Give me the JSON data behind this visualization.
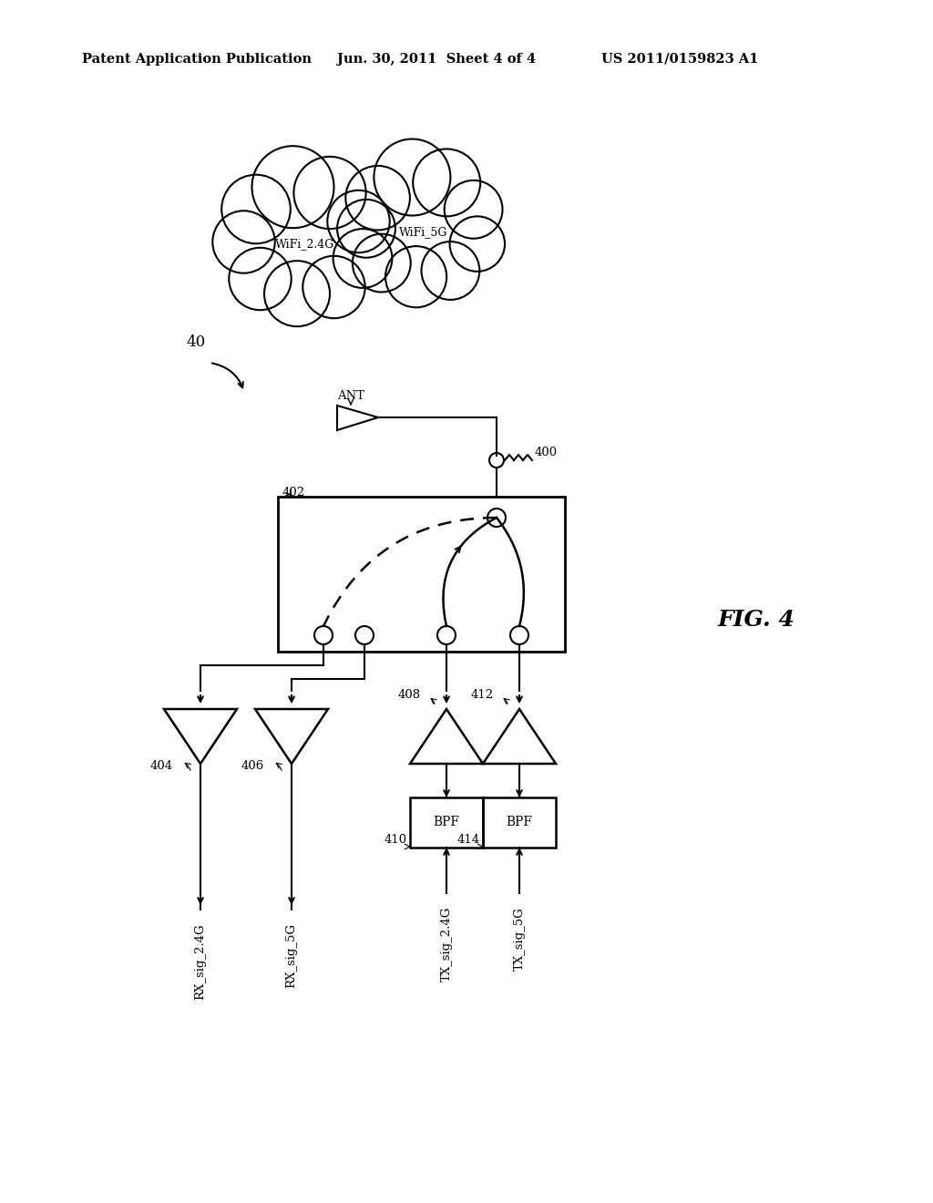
{
  "title_left": "Patent Application Publication",
  "title_mid": "Jun. 30, 2011  Sheet 4 of 4",
  "title_right": "US 2011/0159823 A1",
  "fig_label": "FIG. 4",
  "label_40": "40",
  "label_ANT": "ANT",
  "label_400": "400",
  "label_402": "402",
  "label_404": "404",
  "label_406": "406",
  "label_408": "408",
  "label_410": "410",
  "label_412": "412",
  "label_414": "414",
  "label_wifi24": "WiFi_2.4G",
  "label_wifi5": "WiFi_5G",
  "label_rx24": "RX_sig_2.4G",
  "label_rx5": "RX_sig_5G",
  "label_tx24": "TX_sig_2.4G",
  "label_tx5": "TX_sig_5G",
  "label_bpf1": "BPF",
  "label_bpf2": "BPF",
  "bg_color": "#ffffff",
  "line_color": "#000000"
}
